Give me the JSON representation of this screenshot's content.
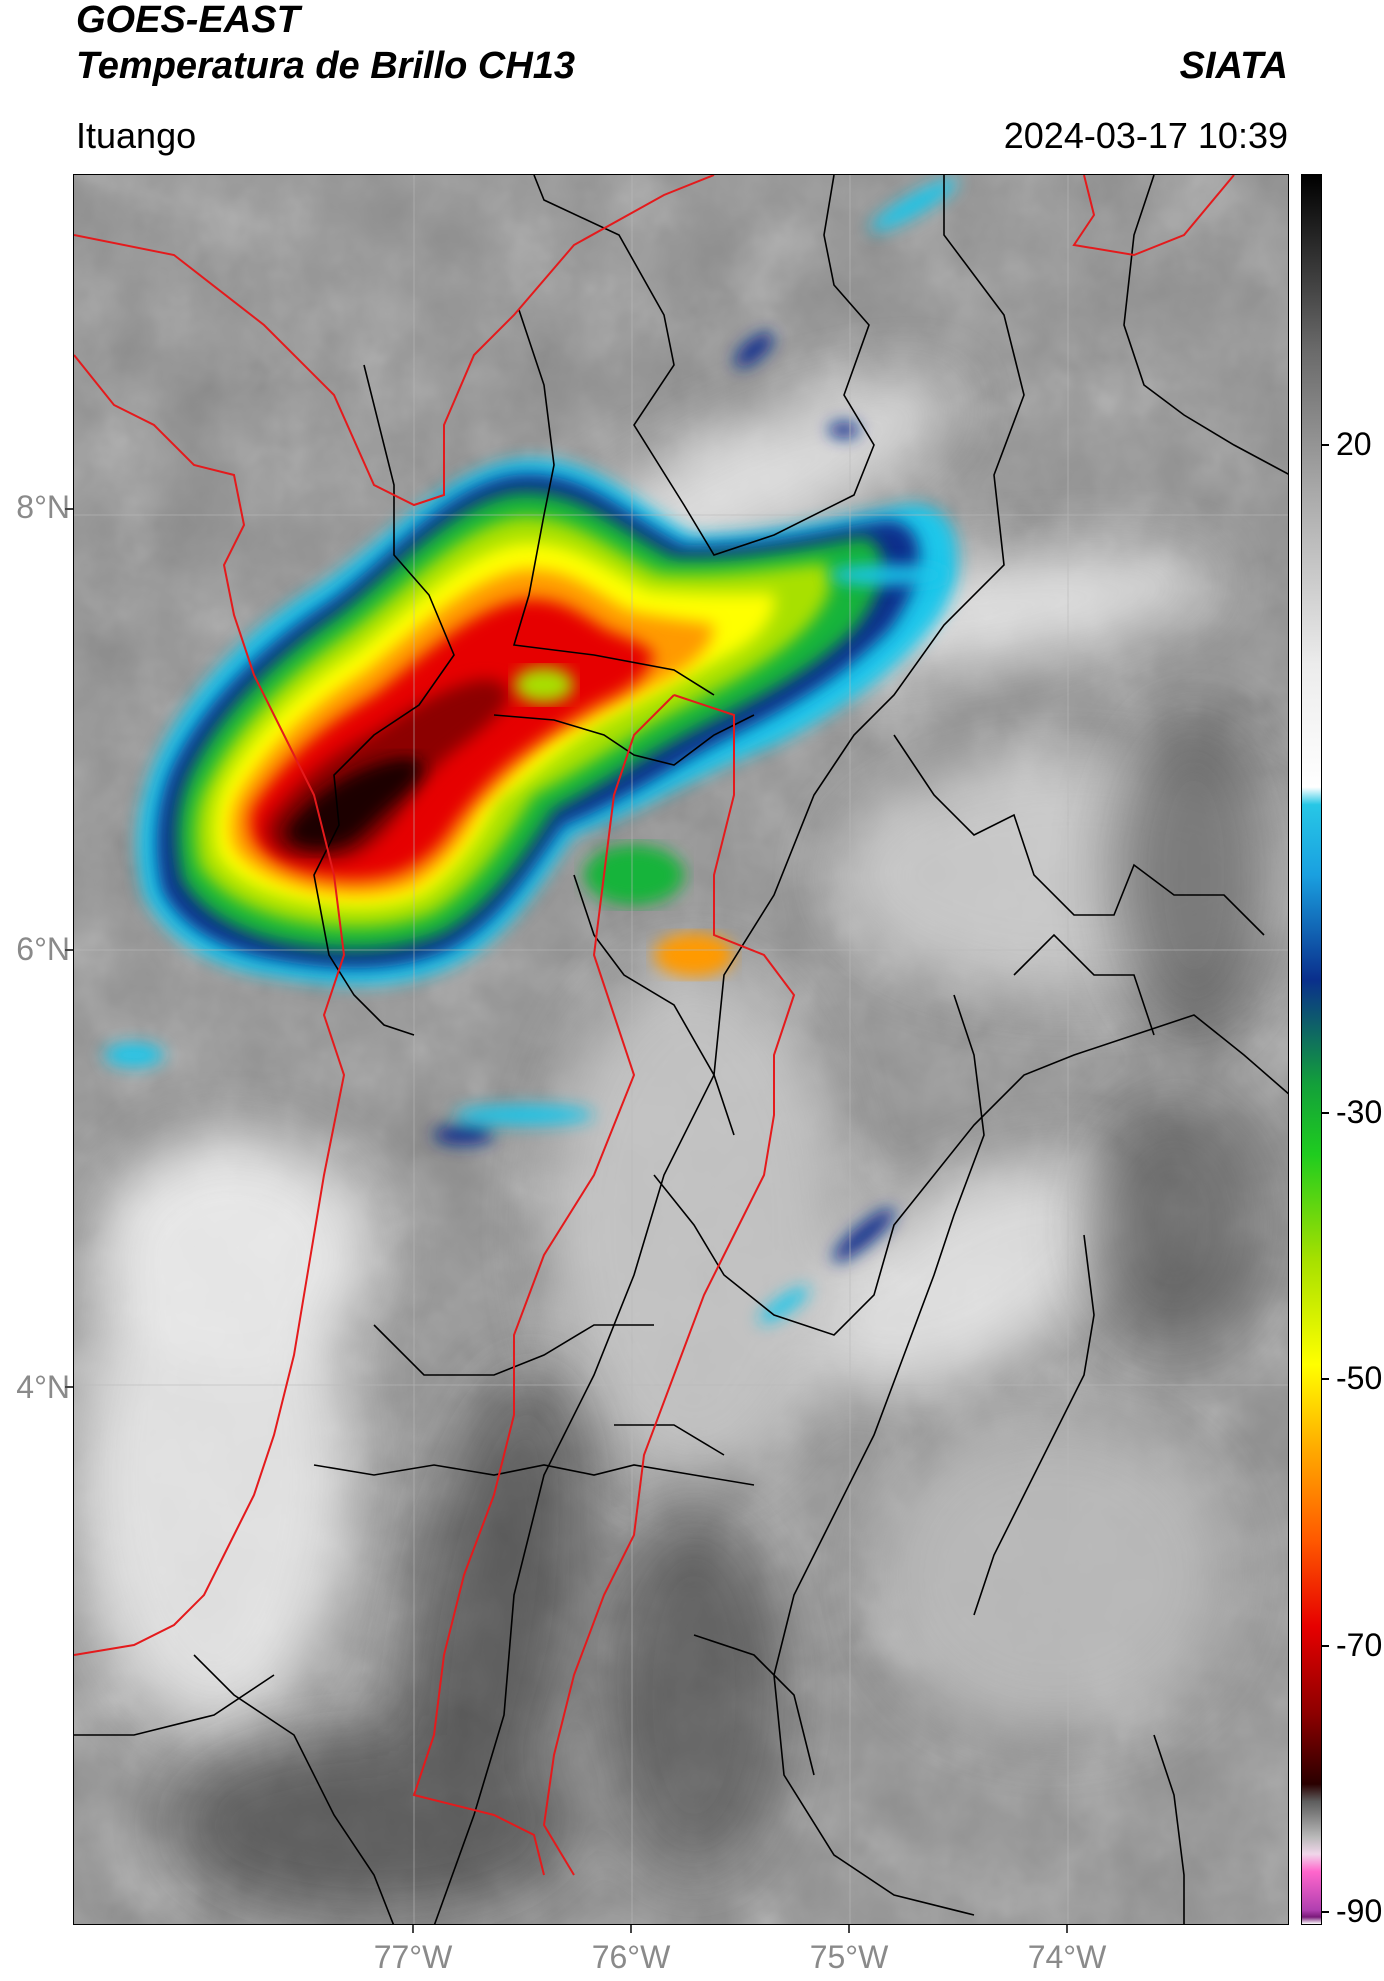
{
  "header": {
    "line1": "GOES-EAST",
    "line2": "Temperatura de Brillo CH13",
    "brand": "SIATA",
    "region": "Ituango",
    "timestamp": "2024-03-17 10:39"
  },
  "axes": {
    "lat_labels": [
      "8°N",
      "6°N",
      "4°N"
    ],
    "lon_labels": [
      "77°W",
      "76°W",
      "75°W",
      "74°W"
    ]
  },
  "colorbar": {
    "labels": [
      "20",
      "-30",
      "-50",
      "-70",
      "-90"
    ],
    "stops": [
      "#000000",
      "#2a2a2a",
      "#6a6a6a",
      "#a8a8a8",
      "#ececec",
      "#ffffff",
      "#27c7e6",
      "#1aa0e0",
      "#0a2f8c",
      "#13a03a",
      "#1fcc1f",
      "#a6e000",
      "#ffff00",
      "#ffa800",
      "#ff5a00",
      "#e60000",
      "#8c0000",
      "#2a0000",
      "#5e5e5e",
      "#b8b8b8",
      "#f0d6ea",
      "#ff66cc",
      "#b040b0",
      "#7a1a7a",
      "#ffffff"
    ]
  },
  "colors": {
    "boundary_black": "#000000",
    "boundary_red": "#e41a1c",
    "map_background": "#8f8f8f"
  }
}
